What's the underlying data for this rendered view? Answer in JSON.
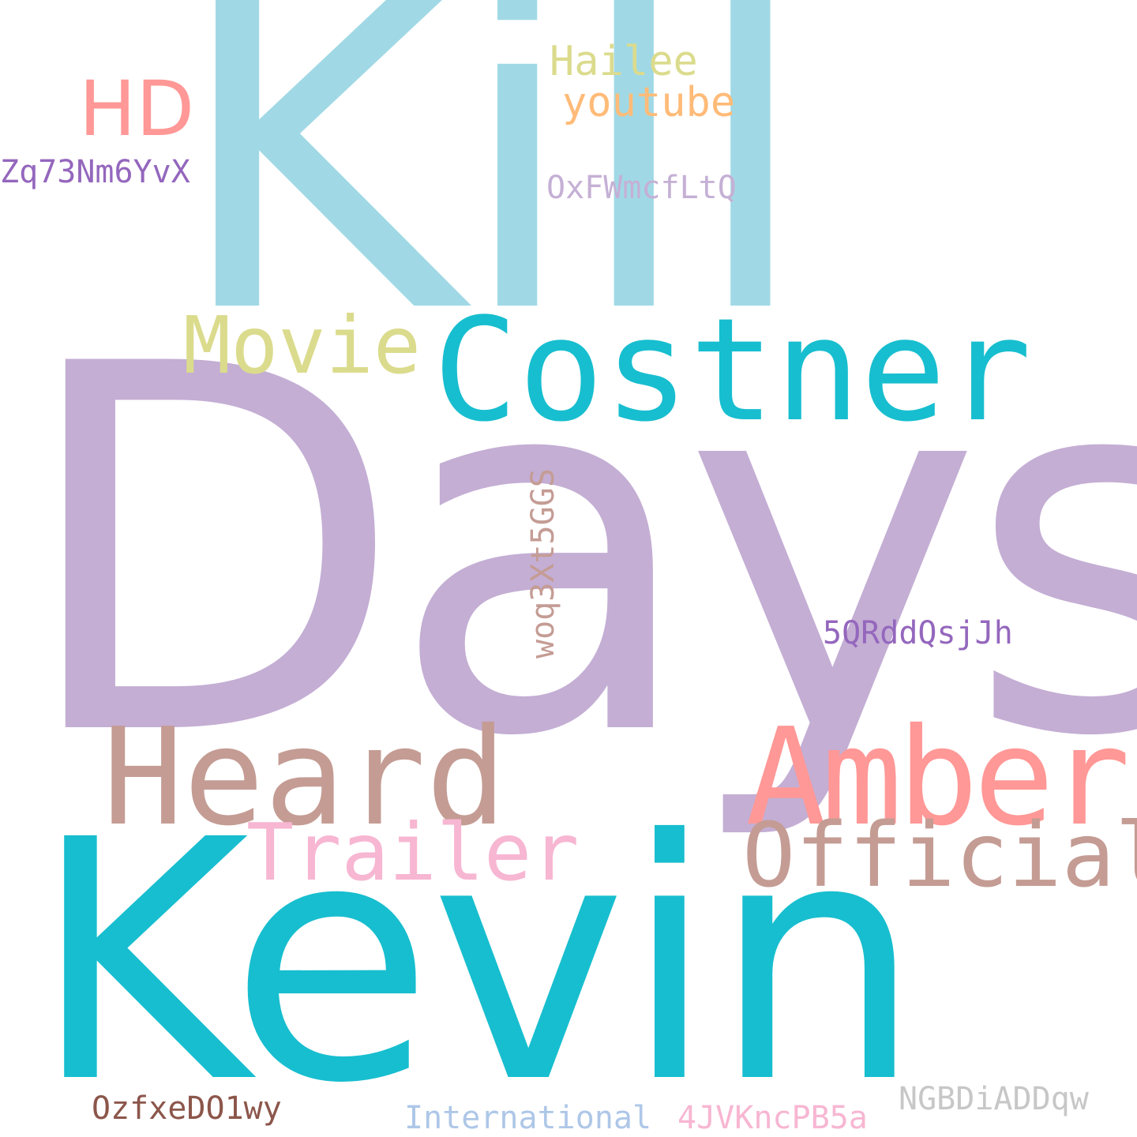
{
  "words": {
    "kill": {
      "text": "Kill",
      "color": "#a0d9e5"
    },
    "days": {
      "text": "Days",
      "color": "#c4aed4"
    },
    "kevin": {
      "text": "Kevin",
      "color": "#17becf"
    },
    "costner": {
      "text": "Costner",
      "color": "#17becf"
    },
    "movie": {
      "text": "Movie",
      "color": "#dbdb8d"
    },
    "heard": {
      "text": "Heard",
      "color": "#c49c94"
    },
    "amber": {
      "text": "Amber",
      "color": "#ff9896"
    },
    "official": {
      "text": "Official",
      "color": "#c49c94"
    },
    "trailer": {
      "text": "Trailer",
      "color": "#f7b6d2"
    },
    "hd": {
      "text": "HD",
      "color": "#ff9896"
    },
    "hailee": {
      "text": "Hailee",
      "color": "#dbdb8d"
    },
    "youtube": {
      "text": "youtube",
      "color": "#ffbb78"
    },
    "zq73nm6yvx": {
      "text": "Zq73Nm6YvX",
      "color": "#9467bd"
    },
    "oxfwmcfltq": {
      "text": "OxFWmcfLtQ",
      "color": "#c5b0d5"
    },
    "woq3xt5ggs": {
      "text": "woq3Xt5GGS",
      "color": "#c49c94"
    },
    "5qrddqsjjh": {
      "text": "5QRddQsjJh",
      "color": "#9467bd"
    },
    "ozfxedo1wy": {
      "text": "OzfxeDO1wy",
      "color": "#8c564b"
    },
    "international": {
      "text": "International",
      "color": "#aec7e8"
    },
    "4jvkncpb5a": {
      "text": "4JVKncPB5a",
      "color": "#f7b6d2"
    },
    "ngbdiaddqw": {
      "text": "NGBDiADDqw",
      "color": "#c7c7c7"
    }
  }
}
